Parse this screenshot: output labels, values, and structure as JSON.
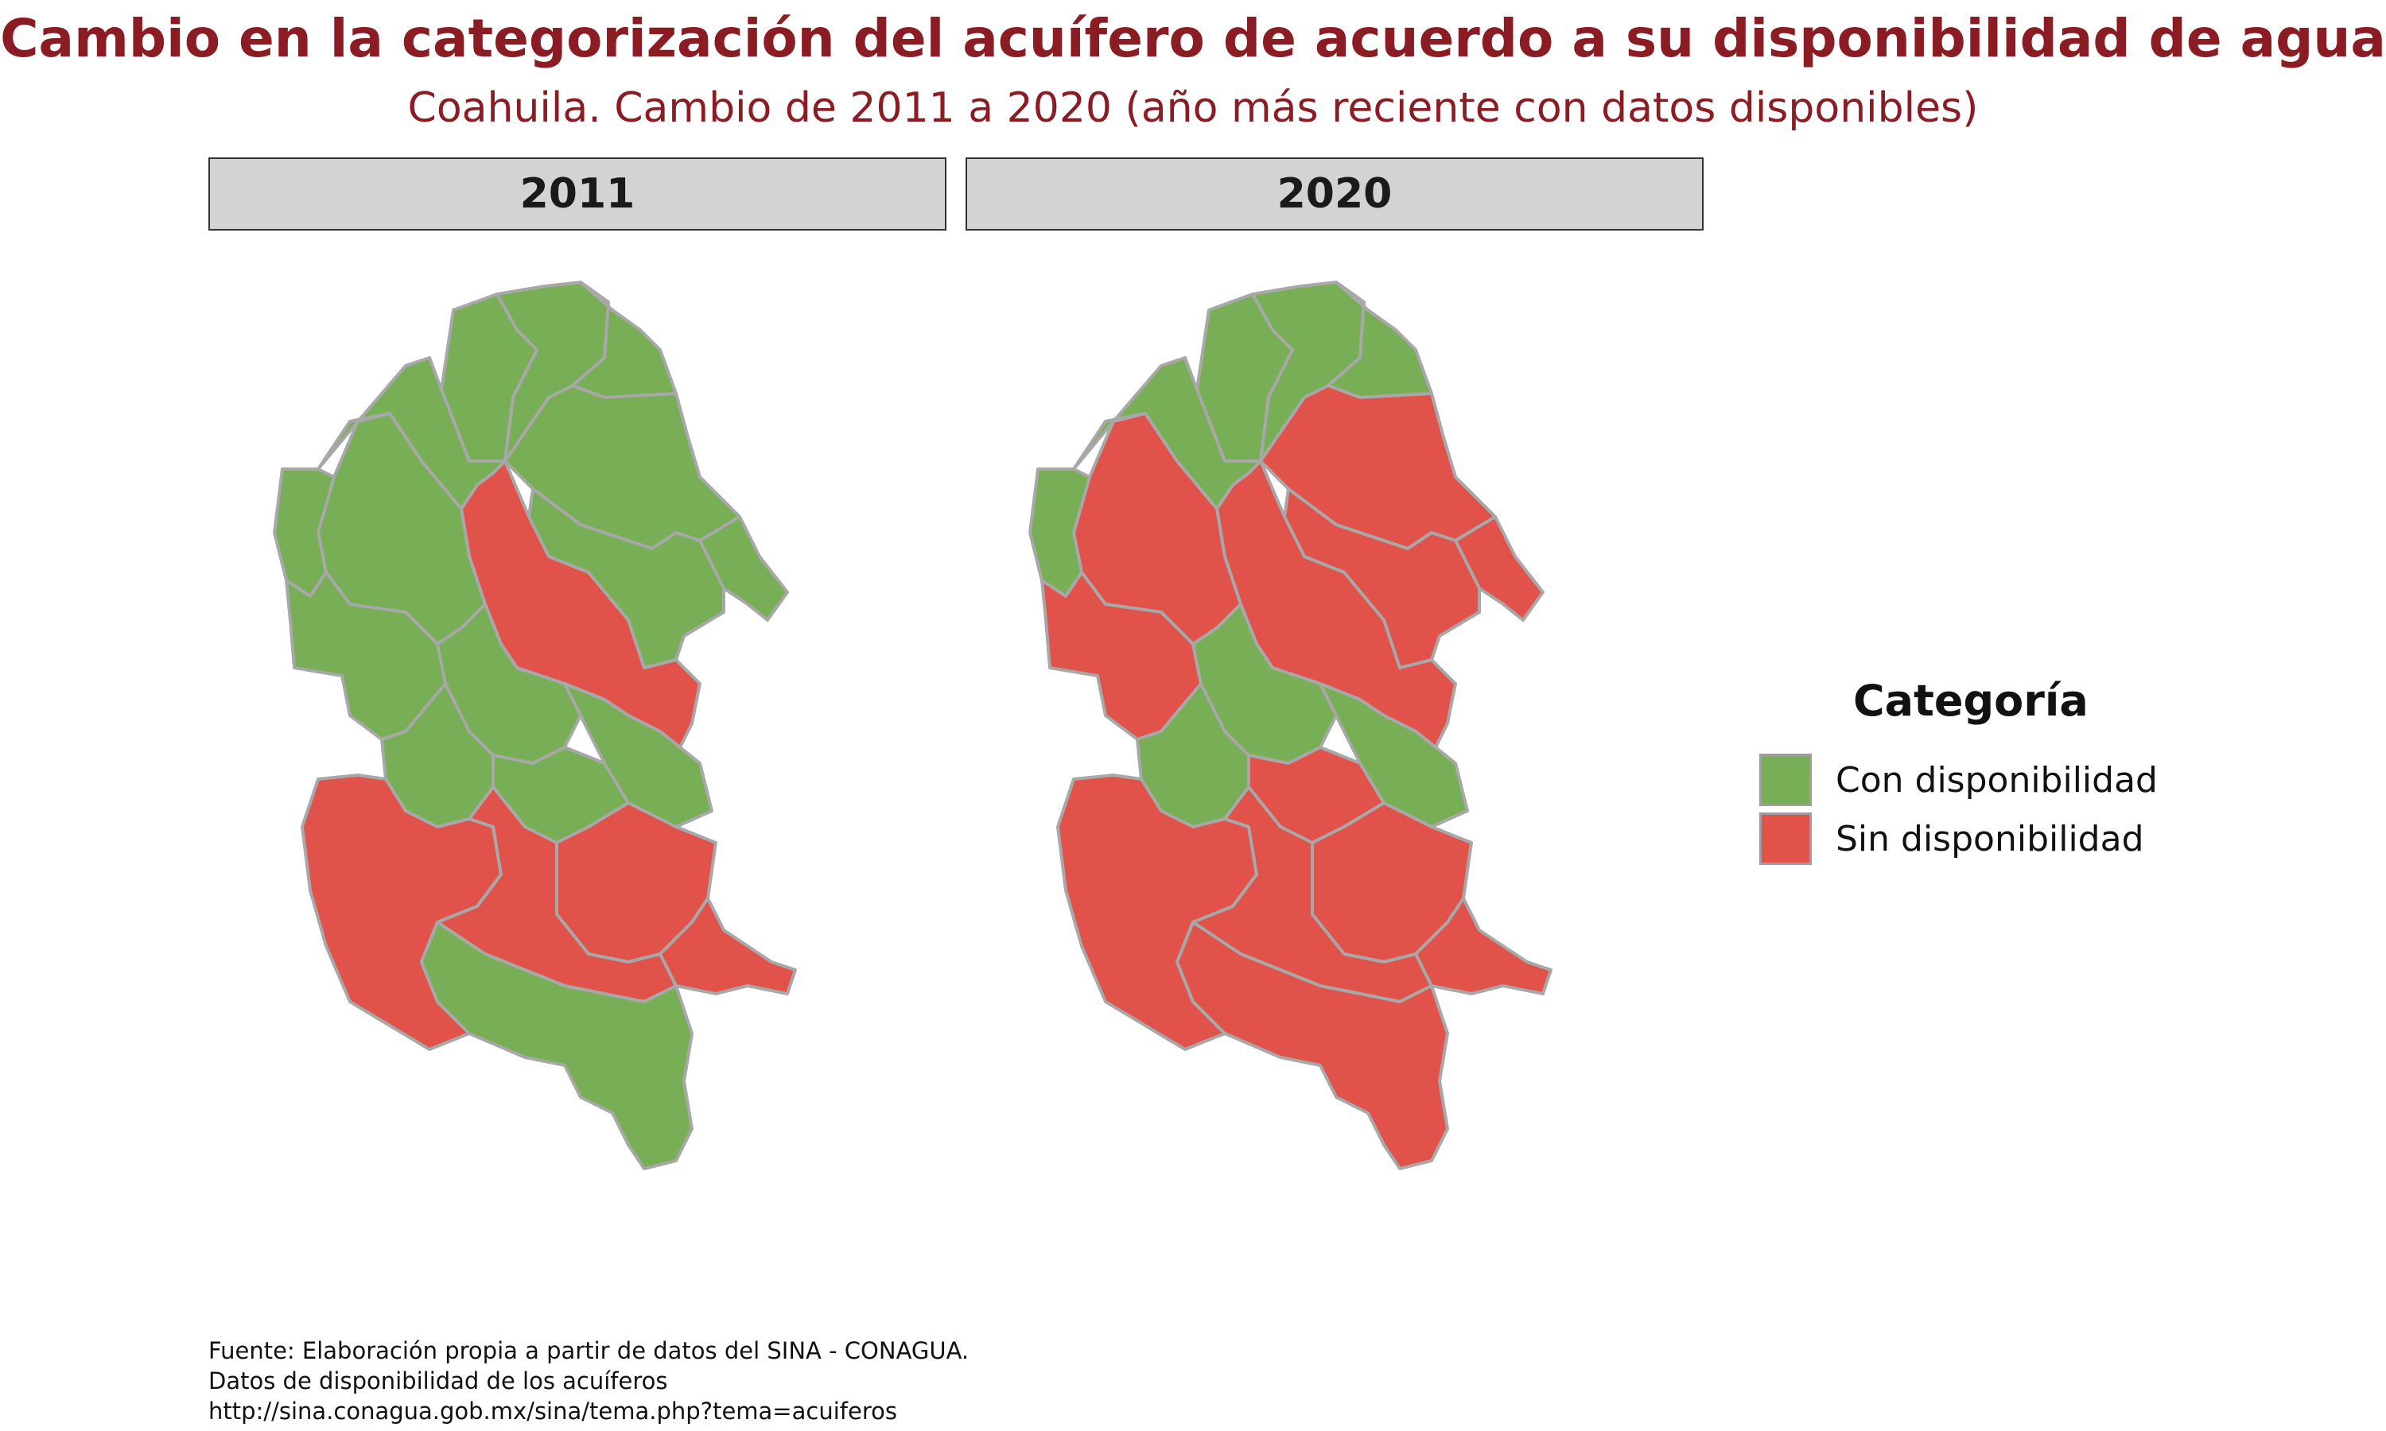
{
  "title": "Cambio en la categorización del acuífero de acuerdo a su disponibilidad de agua",
  "subtitle": "Coahuila. Cambio de 2011 a 2020 (año más reciente con datos disponibles)",
  "panels": [
    {
      "label": "2011"
    },
    {
      "label": "2020"
    }
  ],
  "legend": {
    "title": "Categoría",
    "items": [
      {
        "label": "Con disponibilidad",
        "color": "#77ae56"
      },
      {
        "label": "Sin disponibilidad",
        "color": "#e0524a"
      }
    ]
  },
  "colors": {
    "con": "#77ae56",
    "sin": "#e0524a",
    "border": "#a8a8a8"
  },
  "footer": {
    "lines": [
      "Fuente: Elaboración propia a partir de datos del SINA - CONAGUA.",
      "Datos de disponibilidad de los acuíferos",
      "http://sina.conagua.gob.mx/sina/tema.php?tema=acuiferos"
    ]
  },
  "regions": [
    {
      "id": "norte-oeste",
      "y2011": "con",
      "y2020": "con"
    },
    {
      "id": "norte-centro",
      "y2011": "con",
      "y2020": "con"
    },
    {
      "id": "norte-este",
      "y2011": "con",
      "y2020": "con"
    },
    {
      "id": "noreste-grande",
      "y2011": "con",
      "y2020": "sin"
    },
    {
      "id": "este-extremo",
      "y2011": "con",
      "y2020": "sin"
    },
    {
      "id": "centro-diagonal",
      "y2011": "con",
      "y2020": "sin"
    },
    {
      "id": "franja-central",
      "y2011": "sin",
      "y2020": "sin"
    },
    {
      "id": "oeste-superior",
      "y2011": "con",
      "y2020": "con"
    },
    {
      "id": "oeste-medio",
      "y2011": "con",
      "y2020": "sin"
    },
    {
      "id": "borde-oeste",
      "y2011": "con",
      "y2020": "con"
    },
    {
      "id": "oeste-bajo",
      "y2011": "con",
      "y2020": "sin"
    },
    {
      "id": "centro-bajo",
      "y2011": "con",
      "y2020": "con"
    },
    {
      "id": "centro-sur-oeste",
      "y2011": "con",
      "y2020": "con"
    },
    {
      "id": "centro-sur-este",
      "y2011": "con",
      "y2020": "sin"
    },
    {
      "id": "este-bajo",
      "y2011": "con",
      "y2020": "con"
    },
    {
      "id": "sur-este-medio",
      "y2011": "sin",
      "y2020": "sin"
    },
    {
      "id": "suroeste",
      "y2011": "sin",
      "y2020": "sin"
    },
    {
      "id": "sur-centro",
      "y2011": "sin",
      "y2020": "sin"
    },
    {
      "id": "sureste-extremo",
      "y2011": "sin",
      "y2020": "sin"
    },
    {
      "id": "sur-extremo",
      "y2011": "con",
      "y2020": "sin"
    }
  ]
}
